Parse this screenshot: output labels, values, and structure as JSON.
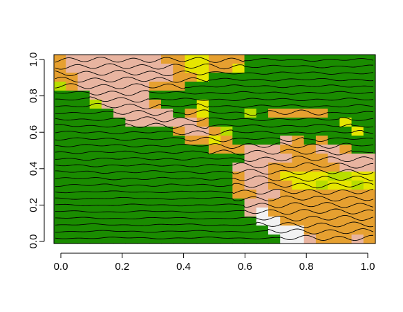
{
  "chart_data": {
    "type": "heatmap",
    "title": "",
    "xlabel": "",
    "ylabel": "",
    "xlim": [
      0,
      1
    ],
    "ylim": [
      0,
      1
    ],
    "x_ticks": [
      0.0,
      0.2,
      0.4,
      0.6,
      0.8,
      1.0
    ],
    "x_tick_labels": [
      "0.0",
      "0.2",
      "0.4",
      "0.6",
      "0.8",
      "1.0"
    ],
    "y_ticks": [
      0.0,
      0.2,
      0.4,
      0.6,
      0.8,
      1.0
    ],
    "y_tick_labels": [
      "0.0",
      "0.2",
      "0.4",
      "0.6",
      "0.8",
      "1.0"
    ],
    "grid": false,
    "palette": {
      "G": "#1a8c00",
      "Y": "#e6e600",
      "L": "#b7dd00",
      "O": "#e6a030",
      "P": "#e8b4a0",
      "W": "#f2f2f2"
    },
    "rows_top_to_bottom": [
      "OPPPPPPPPOOYYOOOGGGGGGGGGGG",
      "OPPPPPPPPPOYYOOYGGGGGGGGGGG",
      "OOPPPPPPPPOOYGGGGGGGGGGGGGG",
      "LOPPPPPPOOOGGGGGGGGGGGGGGGG",
      "GGGPPPPPGGGGGGGGGGGGGGGGGGG",
      "GGGLPPPPOGGGYGGGGGGGGGGGGGG",
      "GGGGGPPPPPGOYGGGLGOOOOOGGGG",
      "GGGGGGPPPPPPOGGGGGGGGGGGYGG",
      "GGGGGGGGGGOPPOLGGGGGGGGGGYG",
      "GGGGGGGGGGGOOYOGGGGPOGOGGGG",
      "GGGGGGGGGGGGGOOOPPPOOOPPOGG",
      "GGGGGGGGGGGGGGGGPPPPOOOPPPP",
      "GGGGGGGGGGGGGGGPPPOOOOOOPPP",
      "GGGGGGGGGGGGGGGOPPOYYYYLLYY",
      "GGGGGGGGGGGGGGGOPPOOYYLYYLY",
      "GGGGGGGGGGGGGGGOOPPOOOOOOOO",
      "GGGGGGGGGGGGGGGGPPOOOOOOOOO",
      "GGGGGGGGGGGGGGGGPWOOOOOOOOO",
      "GGGGGGGGGGGGGGGGGWWOOOOOOOO",
      "GGGGGGGGGGGGGGGGGGWWWOOOOOO",
      "GGGGGGGGGGGGGGGGGGGWWPOOOPO"
    ],
    "trace_count": 28
  }
}
